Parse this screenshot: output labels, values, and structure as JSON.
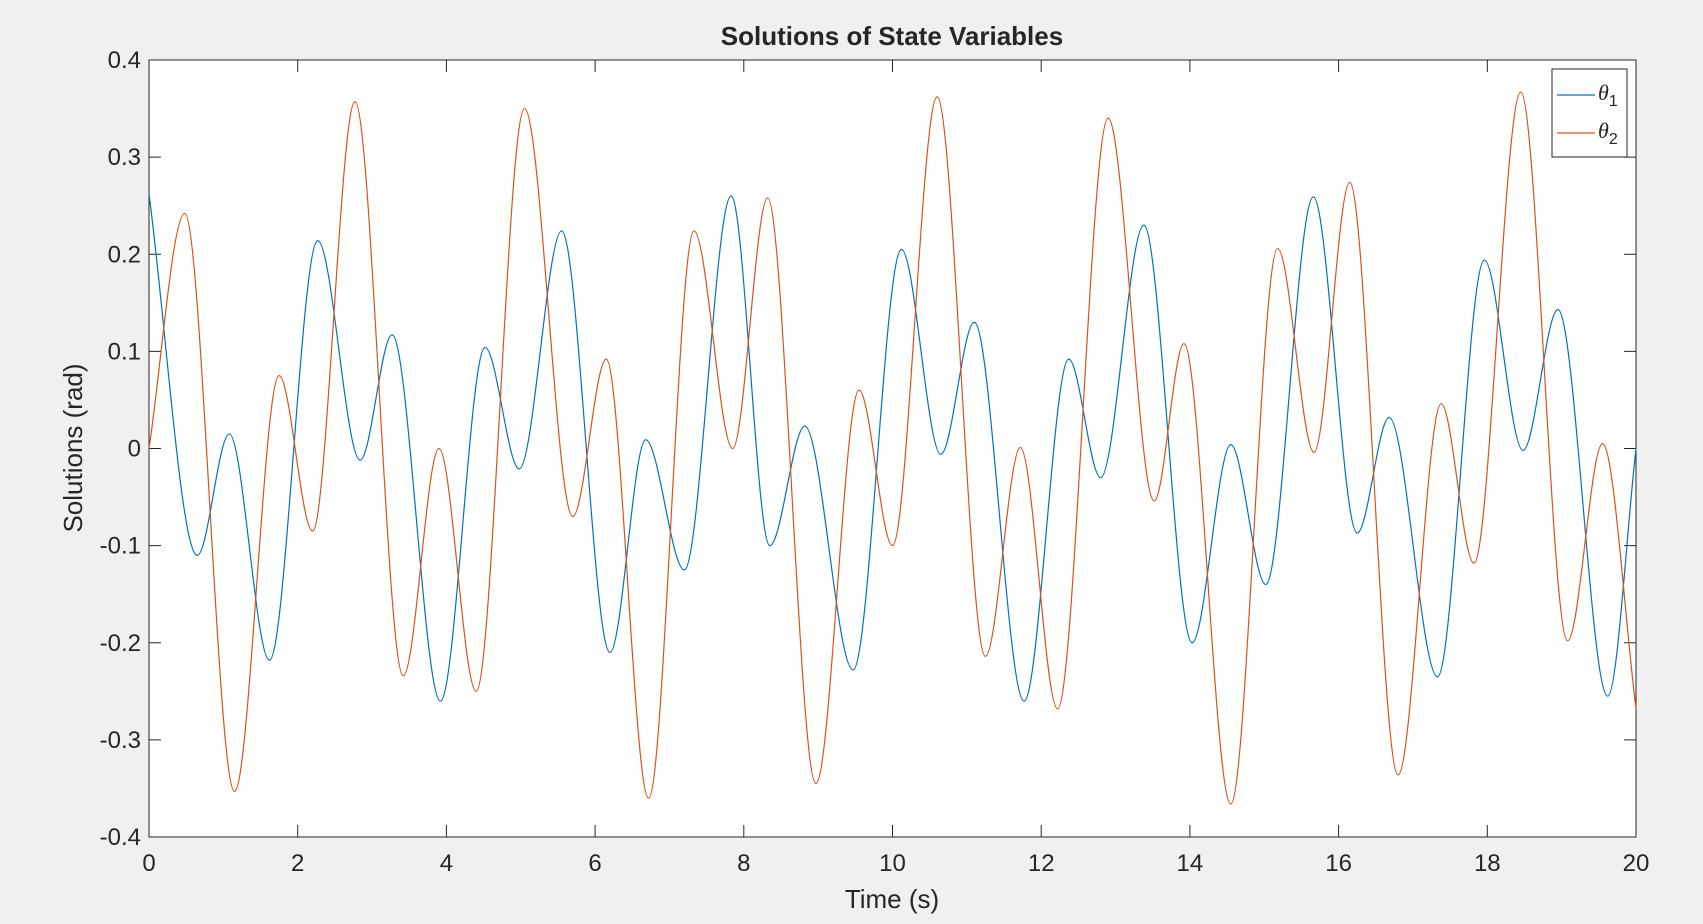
{
  "chart_data": {
    "type": "line",
    "title": "Solutions of State Variables",
    "xlabel": "Time (s)",
    "ylabel": "Solutions (rad)",
    "xlim": [
      0,
      20
    ],
    "ylim": [
      -0.4,
      0.4
    ],
    "xticks": [
      0,
      2,
      4,
      6,
      8,
      10,
      12,
      14,
      16,
      18,
      20
    ],
    "xtick_labels": [
      "0",
      "2",
      "4",
      "6",
      "8",
      "10",
      "12",
      "14",
      "16",
      "18",
      "20"
    ],
    "yticks": [
      -0.4,
      -0.3,
      -0.2,
      -0.1,
      0,
      0.1,
      0.2,
      0.3,
      0.4
    ],
    "ytick_labels": [
      "-0.4",
      "-0.3",
      "-0.2",
      "-0.1",
      "0",
      "0.1",
      "0.2",
      "0.3",
      "0.4"
    ],
    "grid": false,
    "legend_position": "top-right",
    "series": [
      {
        "name": "θ1",
        "legend_symbol": "θ",
        "legend_subscript": "1",
        "color": "#0072bd",
        "points": [
          [
            0,
            0.262
          ],
          [
            0.65,
            -0.11
          ],
          [
            1.08,
            0.015
          ],
          [
            1.62,
            -0.218
          ],
          [
            2.27,
            0.214
          ],
          [
            2.84,
            -0.012
          ],
          [
            3.27,
            0.117
          ],
          [
            3.92,
            -0.26
          ],
          [
            4.52,
            0.104
          ],
          [
            4.98,
            -0.021
          ],
          [
            5.55,
            0.224
          ],
          [
            6.2,
            -0.21
          ],
          [
            6.68,
            0.009
          ],
          [
            7.2,
            -0.125
          ],
          [
            7.83,
            0.26
          ],
          [
            8.35,
            -0.1
          ],
          [
            8.82,
            0.023
          ],
          [
            9.47,
            -0.228
          ],
          [
            10.12,
            0.205
          ],
          [
            10.65,
            -0.006
          ],
          [
            11.1,
            0.13
          ],
          [
            11.77,
            -0.26
          ],
          [
            12.37,
            0.092
          ],
          [
            12.8,
            -0.03
          ],
          [
            13.38,
            0.23
          ],
          [
            14.03,
            -0.2
          ],
          [
            14.55,
            0.004
          ],
          [
            15.02,
            -0.14
          ],
          [
            15.66,
            0.259
          ],
          [
            16.25,
            -0.087
          ],
          [
            16.68,
            0.032
          ],
          [
            17.33,
            -0.235
          ],
          [
            17.96,
            0.194
          ],
          [
            18.48,
            -0.002
          ],
          [
            18.95,
            0.143
          ],
          [
            19.62,
            -0.255
          ],
          [
            20,
            0.0
          ]
        ]
      },
      {
        "name": "θ2",
        "legend_symbol": "θ",
        "legend_subscript": "2",
        "color": "#d95319",
        "points": [
          [
            0,
            0.0
          ],
          [
            0.48,
            0.242
          ],
          [
            1.15,
            -0.353
          ],
          [
            1.75,
            0.075
          ],
          [
            2.2,
            -0.085
          ],
          [
            2.77,
            0.357
          ],
          [
            3.42,
            -0.234
          ],
          [
            3.9,
            0.0
          ],
          [
            4.4,
            -0.25
          ],
          [
            5.05,
            0.35
          ],
          [
            5.7,
            -0.07
          ],
          [
            6.15,
            0.092
          ],
          [
            6.72,
            -0.36
          ],
          [
            7.33,
            0.224
          ],
          [
            7.85,
            0.0
          ],
          [
            8.32,
            0.258
          ],
          [
            8.97,
            -0.345
          ],
          [
            9.55,
            0.06
          ],
          [
            10.0,
            -0.1
          ],
          [
            10.6,
            0.362
          ],
          [
            11.25,
            -0.214
          ],
          [
            11.72,
            0.001
          ],
          [
            12.22,
            -0.268
          ],
          [
            12.9,
            0.34
          ],
          [
            13.52,
            -0.054
          ],
          [
            13.92,
            0.108
          ],
          [
            14.55,
            -0.366
          ],
          [
            15.18,
            0.206
          ],
          [
            15.67,
            -0.004
          ],
          [
            16.15,
            0.274
          ],
          [
            16.8,
            -0.336
          ],
          [
            17.38,
            0.046
          ],
          [
            17.82,
            -0.118
          ],
          [
            18.45,
            0.367
          ],
          [
            19.08,
            -0.198
          ],
          [
            19.55,
            0.005
          ],
          [
            20,
            -0.268
          ]
        ]
      }
    ]
  }
}
